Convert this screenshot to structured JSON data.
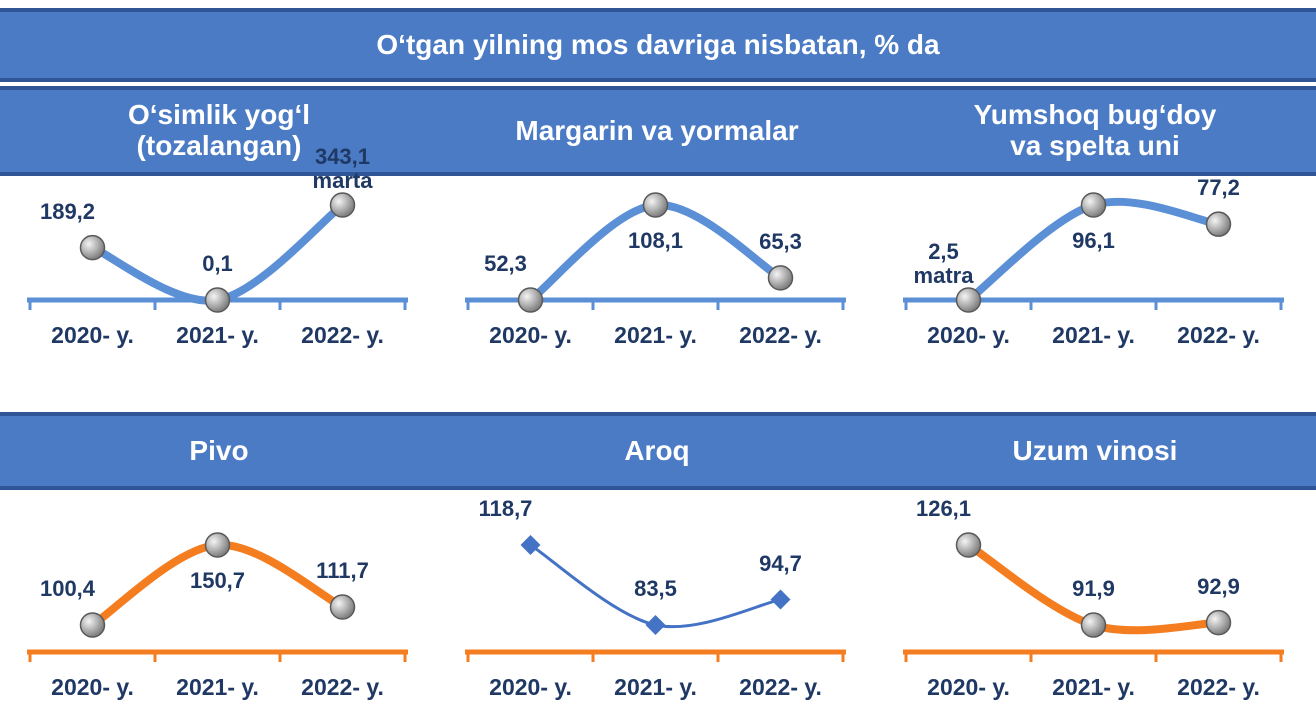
{
  "title": "O‘tgan yilning mos davriga nisbatan, % da",
  "chart_data": [
    {
      "type": "line",
      "title": "O‘simlik yog‘l\n(tozalangan)",
      "categories": [
        "2020- y.",
        "2021- y.",
        "2022- y."
      ],
      "values": [
        189.2,
        0.1,
        343.1
      ],
      "value_labels": [
        "189,2",
        "0,1",
        "343,1\nmarta"
      ],
      "color": "#5b8fd6",
      "axis_color": "#5b8fd6",
      "marker": "circle"
    },
    {
      "type": "line",
      "title": "Margarin va yormalar",
      "categories": [
        "2020- y.",
        "2021- y.",
        "2022- y."
      ],
      "values": [
        52.3,
        108.1,
        65.3
      ],
      "value_labels": [
        "52,3",
        "108,1",
        "65,3"
      ],
      "color": "#5b8fd6",
      "axis_color": "#5b8fd6",
      "marker": "circle"
    },
    {
      "type": "line",
      "title": "Yumshoq bug‘doy\nva spelta uni",
      "categories": [
        "2020- y.",
        "2021- y.",
        "2022- y."
      ],
      "values": [
        2.5,
        96.1,
        77.2
      ],
      "value_labels": [
        "2,5\nmatra",
        "96,1",
        "77,2"
      ],
      "color": "#5b8fd6",
      "axis_color": "#5b8fd6",
      "marker": "circle"
    },
    {
      "type": "line",
      "title": "Pivo",
      "categories": [
        "2020- y.",
        "2021- y.",
        "2022- y."
      ],
      "values": [
        100.4,
        150.7,
        111.7
      ],
      "value_labels": [
        "100,4",
        "150,7",
        "111,7"
      ],
      "color": "#f47d20",
      "axis_color": "#f47d20",
      "marker": "circle"
    },
    {
      "type": "line",
      "title": "Aroq",
      "categories": [
        "2020- y.",
        "2021- y.",
        "2022- y."
      ],
      "values": [
        118.7,
        83.5,
        94.7
      ],
      "value_labels": [
        "118,7",
        "83,5",
        "94,7"
      ],
      "color": "#4472c4",
      "axis_color": "#f47d20",
      "marker": "diamond"
    },
    {
      "type": "line",
      "title": "Uzum vinosi",
      "categories": [
        "2020- y.",
        "2021- y.",
        "2022- y."
      ],
      "values": [
        126.1,
        91.9,
        92.9
      ],
      "value_labels": [
        "126,1",
        "91,9",
        "92,9"
      ],
      "color": "#f47d20",
      "axis_color": "#f47d20",
      "marker": "circle"
    }
  ]
}
